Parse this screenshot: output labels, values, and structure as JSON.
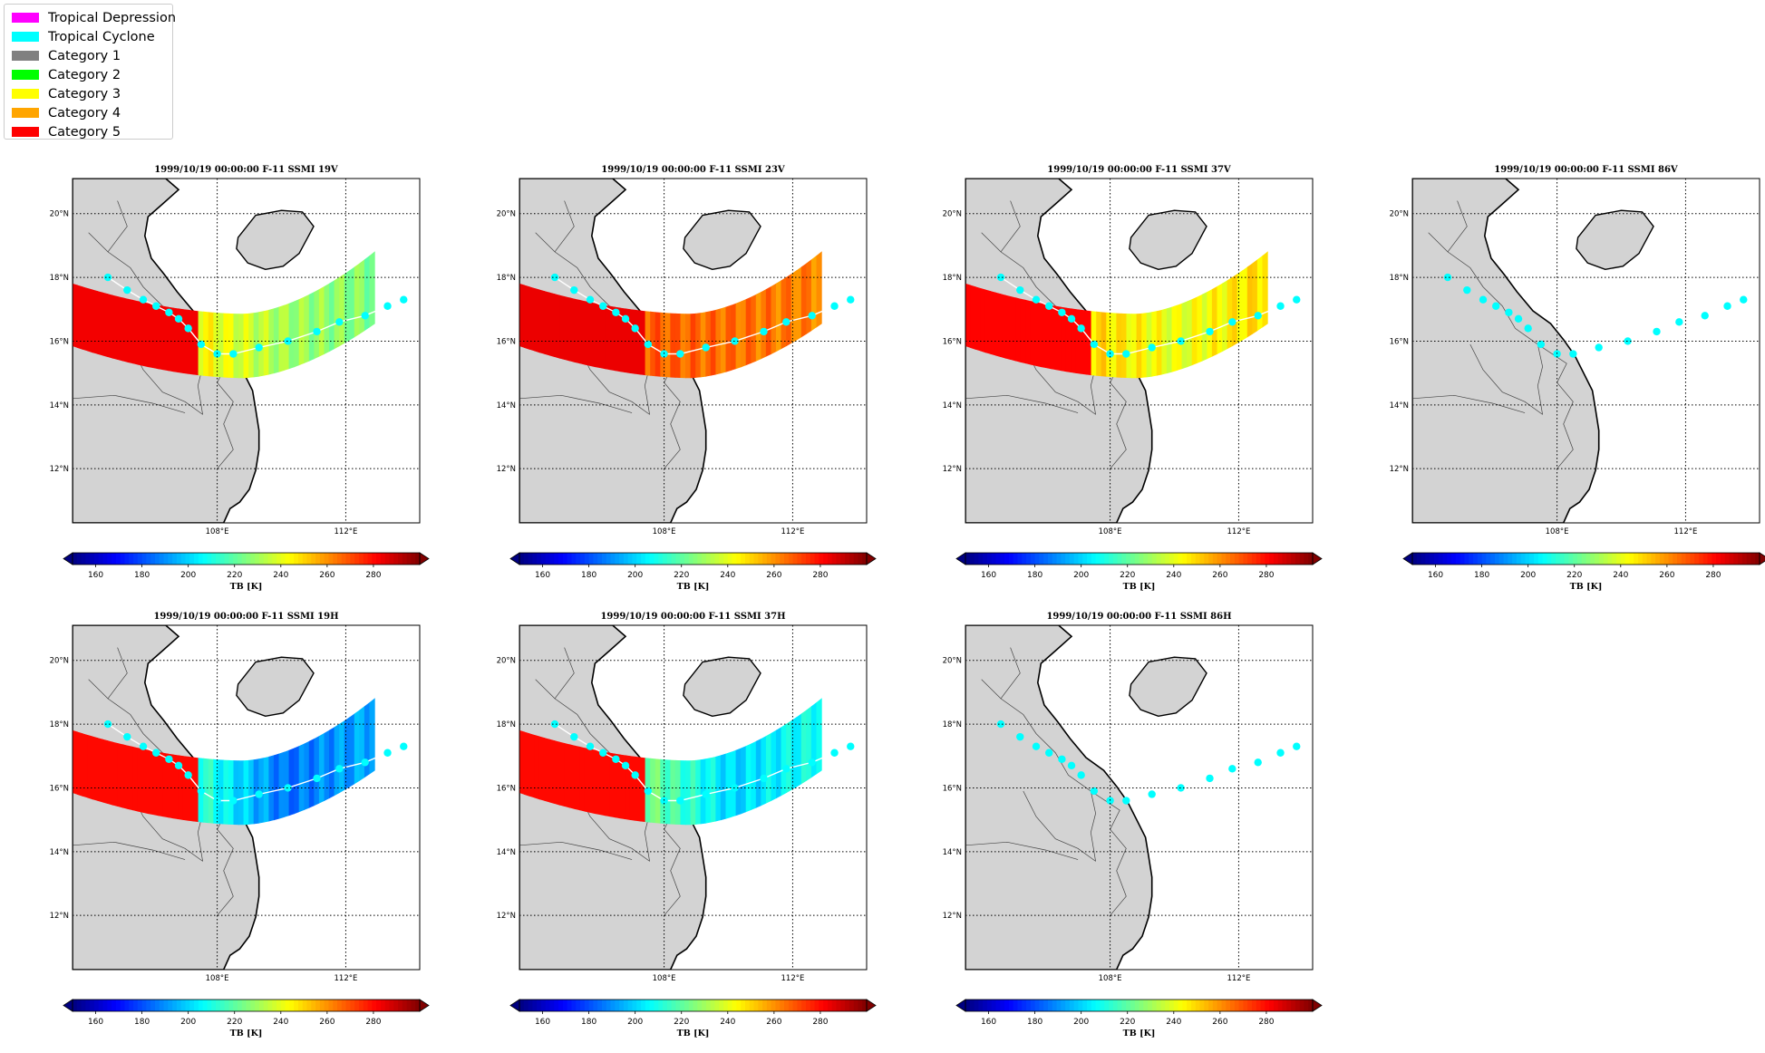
{
  "legend": {
    "items": [
      {
        "label": "Tropical Depression",
        "color": "#ff00ff"
      },
      {
        "label": "Tropical Cyclone",
        "color": "#00ffff"
      },
      {
        "label": "Category 1",
        "color": "#808080"
      },
      {
        "label": "Category 2",
        "color": "#00ff00"
      },
      {
        "label": "Category 3",
        "color": "#ffff00"
      },
      {
        "label": "Category 4",
        "color": "#ffa500"
      },
      {
        "label": "Category 5",
        "color": "#ff0000"
      }
    ]
  },
  "chart_data": {
    "type": "map",
    "lon_range": [
      103.5,
      114.3
    ],
    "lat_range": [
      10.3,
      21.1
    ],
    "lat_ticks": [
      "12°N",
      "14°N",
      "16°N",
      "18°N",
      "20°N"
    ],
    "lon_ticks": [
      "108°E",
      "112°E"
    ],
    "colorbar": {
      "label": "TB [K]",
      "vmin": 150,
      "vmax": 300,
      "ticks": [
        160,
        180,
        200,
        220,
        240,
        260,
        280
      ],
      "colormap": "jet",
      "extend": "both"
    },
    "track": {
      "category": "Tropical Cyclone",
      "color": "#00ffff",
      "points": [
        [
          104.6,
          18.0
        ],
        [
          105.2,
          17.6
        ],
        [
          105.7,
          17.3
        ],
        [
          106.1,
          17.1
        ],
        [
          106.5,
          16.9
        ],
        [
          106.8,
          16.7
        ],
        [
          107.1,
          16.4
        ],
        [
          107.5,
          15.9
        ],
        [
          108.0,
          15.6
        ],
        [
          108.5,
          15.6
        ],
        [
          109.3,
          15.8
        ],
        [
          110.2,
          16.0
        ],
        [
          111.1,
          16.3
        ],
        [
          111.8,
          16.6
        ],
        [
          112.6,
          16.8
        ],
        [
          113.3,
          17.1
        ],
        [
          113.8,
          17.3
        ]
      ]
    },
    "panels": [
      {
        "title": "1999/10/19 00:00:00  F-11 SSMI 19V",
        "channel": "19V",
        "has_data": true,
        "ocean_tb": {
          "north": 225,
          "central": 230,
          "south": 245
        },
        "land_tb": 283
      },
      {
        "title": "1999/10/19 00:00:00  F-11 SSMI 23V",
        "channel": "23V",
        "has_data": true,
        "ocean_tb": {
          "north": 262,
          "central": 265,
          "south": 268
        },
        "land_tb": 284
      },
      {
        "title": "1999/10/19 00:00:00  F-11 SSMI 37V",
        "channel": "37V",
        "has_data": true,
        "ocean_tb": {
          "north": 250,
          "central": 240,
          "south": 250
        },
        "land_tb": 281
      },
      {
        "title": "1999/10/19 00:00:00  F-11 SSMI 86V",
        "channel": "86V",
        "has_data": false
      },
      {
        "title": "1999/10/19 00:00:00  F-11 SSMI 19H",
        "channel": "19H",
        "has_data": true,
        "ocean_tb": {
          "north": 195,
          "central": 185,
          "south": 215
        },
        "land_tb": 280
      },
      {
        "title": "1999/10/19 00:00:00  F-11 SSMI 37H",
        "channel": "37H",
        "has_data": true,
        "ocean_tb": {
          "north": 210,
          "central": 200,
          "south": 225
        },
        "land_tb": 280
      },
      {
        "title": "1999/10/19 00:00:00  F-11 SSMI 86H",
        "channel": "86H",
        "has_data": false
      }
    ]
  }
}
